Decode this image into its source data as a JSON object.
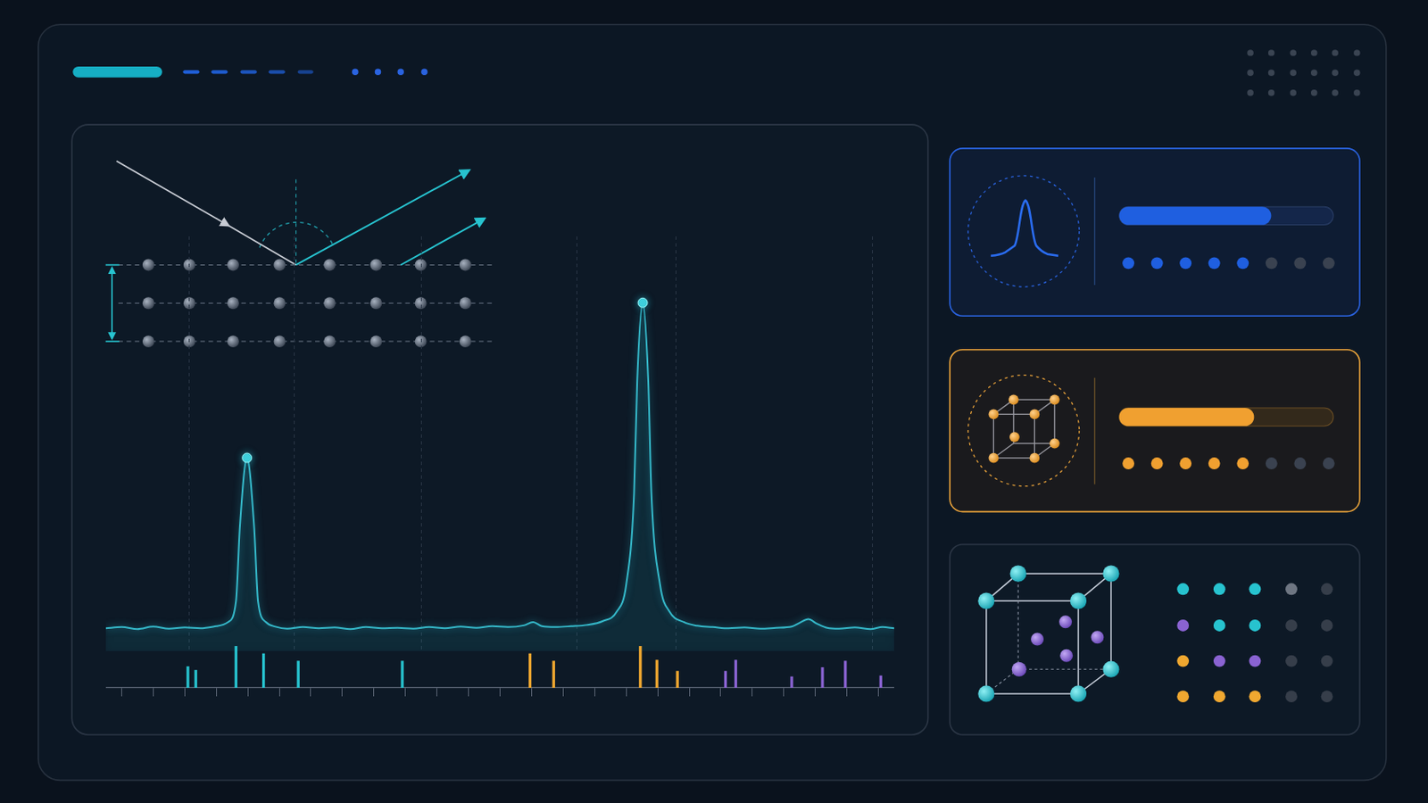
{
  "chart_data": [
    {
      "type": "line",
      "color": "#35b8c9",
      "grid": "x",
      "tick_labels": false,
      "xlim": [
        0,
        100
      ],
      "ylim": [
        0,
        100
      ],
      "xticks": [
        10.6,
        23.9,
        40,
        59.8,
        72.3,
        97.2
      ],
      "x": [
        0,
        2,
        4,
        6,
        8,
        10,
        12,
        14,
        15.5,
        16.5,
        17.0,
        17.9,
        18.8,
        19.3,
        20.3,
        21.5,
        23,
        25,
        27,
        29,
        31,
        33,
        35,
        37,
        39,
        41,
        43,
        45,
        47,
        49,
        51,
        53,
        54.2,
        55.3,
        57,
        59,
        61,
        63,
        64.8,
        66,
        67,
        67.4,
        68.1,
        68.8,
        69.2,
        70.3,
        71.5,
        73.3,
        75,
        77,
        79,
        81,
        83,
        85,
        87,
        88,
        89.1,
        90.2,
        91.5,
        93,
        95,
        97,
        98.5,
        100
      ],
      "values": [
        5.5,
        5.8,
        5.3,
        5.9,
        5.4,
        5.7,
        5.5,
        6.0,
        7.0,
        12,
        30,
        46.6,
        30,
        12,
        7.0,
        5.9,
        5.4,
        5.8,
        5.5,
        5.7,
        5.3,
        5.8,
        5.5,
        5.6,
        5.4,
        5.8,
        5.5,
        5.9,
        5.6,
        6.0,
        5.8,
        6.2,
        7.0,
        6.0,
        5.8,
        6.0,
        6.3,
        7.2,
        9.5,
        16,
        38,
        65,
        84,
        65,
        38,
        16,
        9.5,
        7.0,
        6.1,
        5.8,
        5.5,
        5.7,
        5.4,
        5.6,
        5.9,
        6.8,
        7.7,
        6.6,
        5.6,
        5.4,
        5.7,
        5.3,
        5.8,
        5.5
      ]
    },
    {
      "type": "bar",
      "grid": false,
      "tick_labels": false,
      "xlim": [
        0,
        100
      ],
      "ylim": [
        0,
        50
      ],
      "xticks": [
        0,
        4,
        8,
        12,
        16,
        20,
        24,
        28,
        32,
        36,
        40,
        44,
        48,
        52,
        56,
        60,
        64,
        68,
        72,
        76,
        80,
        84,
        88,
        92,
        96,
        100
      ],
      "series": [
        {
          "color": "#27c3cf",
          "x": [
            10.4,
            11.4,
            16.5,
            20.0,
            24.4,
            37.6
          ],
          "values": [
            23,
            19,
            45,
            37,
            29,
            29
          ]
        },
        {
          "color": "#f0a830",
          "x": [
            53.8,
            56.8,
            67.8,
            69.9,
            72.5
          ],
          "values": [
            37,
            29,
            45,
            30,
            18
          ]
        },
        {
          "color": "#8a63d2",
          "x": [
            78.6,
            79.9,
            87.0,
            90.9,
            93.8,
            98.3
          ],
          "values": [
            18,
            30,
            12,
            22,
            29,
            13
          ]
        }
      ]
    }
  ],
  "panels": [
    {
      "color": "#1f5fe0",
      "progress": 71,
      "rating": 5,
      "rating_max": 8
    },
    {
      "color": "#f0a030",
      "progress": 63,
      "rating": 5,
      "rating_max": 8
    }
  ]
}
